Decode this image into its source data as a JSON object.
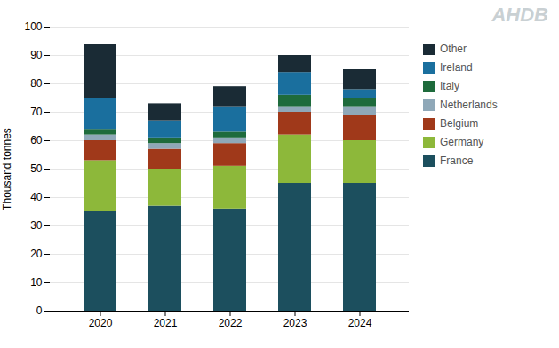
{
  "chart_data": {
    "type": "bar",
    "stacked": true,
    "categories": [
      "2020",
      "2021",
      "2022",
      "2023",
      "2024"
    ],
    "series": [
      {
        "name": "France",
        "color": "#1c4f5e",
        "values": [
          35,
          37,
          36,
          45,
          45
        ]
      },
      {
        "name": "Germany",
        "color": "#8db83a",
        "values": [
          18,
          13,
          15,
          17,
          15
        ]
      },
      {
        "name": "Belgium",
        "color": "#a0391a",
        "values": [
          7,
          7,
          8,
          8,
          9
        ]
      },
      {
        "name": "Netherlands",
        "color": "#8fa8b8",
        "values": [
          2,
          2,
          2,
          2,
          3
        ]
      },
      {
        "name": "Italy",
        "color": "#1e6b3c",
        "values": [
          2,
          2,
          2,
          4,
          3
        ]
      },
      {
        "name": "Ireland",
        "color": "#1a6f9e",
        "values": [
          11,
          6,
          9,
          8,
          3
        ]
      },
      {
        "name": "Other",
        "color": "#1a2b35",
        "values": [
          19,
          6,
          7,
          6,
          7
        ]
      }
    ],
    "ylabel": "Thousand tonnes",
    "ylim": [
      0,
      100
    ],
    "yticks": [
      0,
      10,
      20,
      30,
      40,
      50,
      60,
      70,
      80,
      90,
      100
    ],
    "grid": true,
    "legend": "right",
    "annotations": [
      "AHDB"
    ]
  }
}
